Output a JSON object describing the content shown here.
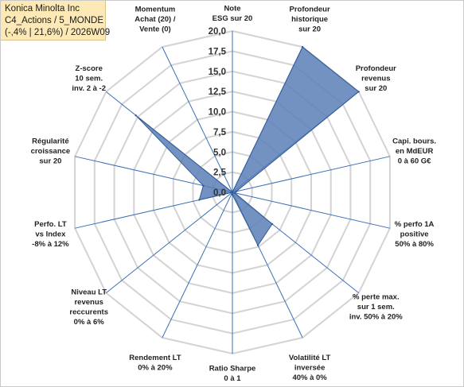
{
  "title_lines": [
    "Konica Minolta Inc",
    "C4_Actions / 5_MONDE",
    "(-,4% | 21,6%) / 2026W09"
  ],
  "colors": {
    "title_background": "#fde9b6",
    "ring": "#d3d3d3",
    "spoke": "#3c6fb5",
    "fill": "#5b7fb6",
    "fill_stroke": "#2f5a97"
  },
  "chart_data": {
    "type": "radar",
    "rmin": 0,
    "rmax": 20,
    "tick_step": 2.5,
    "tick_labels": [
      "0,0",
      "2,5",
      "5,0",
      "7,5",
      "10,0",
      "12,5",
      "15,0",
      "17,5",
      "20,0"
    ],
    "axes": [
      [
        "Note",
        "ESG sur 20"
      ],
      [
        "Profondeur",
        "historique",
        "sur 20"
      ],
      [
        "Profondeur",
        "revenus",
        "sur 20"
      ],
      [
        "Capi. bours.",
        "en MdEUR",
        "0 à 60 G€"
      ],
      [
        "% perfo 1A",
        "positive",
        "50% à 80%"
      ],
      [
        "% perte max.",
        "sur 1 sem.",
        "inv. 50% à 20%"
      ],
      [
        "Volatilité LT",
        "inversée",
        "40% à 0%"
      ],
      [
        "Ratio Sharpe",
        "0 à 1"
      ],
      [
        "Rendement LT",
        "0% à 20%"
      ],
      [
        "Niveau LT",
        "revenus",
        "reccurents",
        "0% à 6%"
      ],
      [
        "Perfo. LT",
        "vs Index",
        "-8% à 12%"
      ],
      [
        "Régularité",
        "croissance",
        "sur 20"
      ],
      [
        "Z-score",
        "10 sem.",
        "inv. 2 à -2"
      ],
      [
        "Momentum",
        "Achat (20) /",
        "Vente (0)"
      ]
    ],
    "values": [
      0,
      20,
      20,
      0.5,
      0.3,
      6.3,
      7.3,
      0.3,
      0,
      0,
      4.2,
      3.7,
      15.3,
      0
    ]
  }
}
